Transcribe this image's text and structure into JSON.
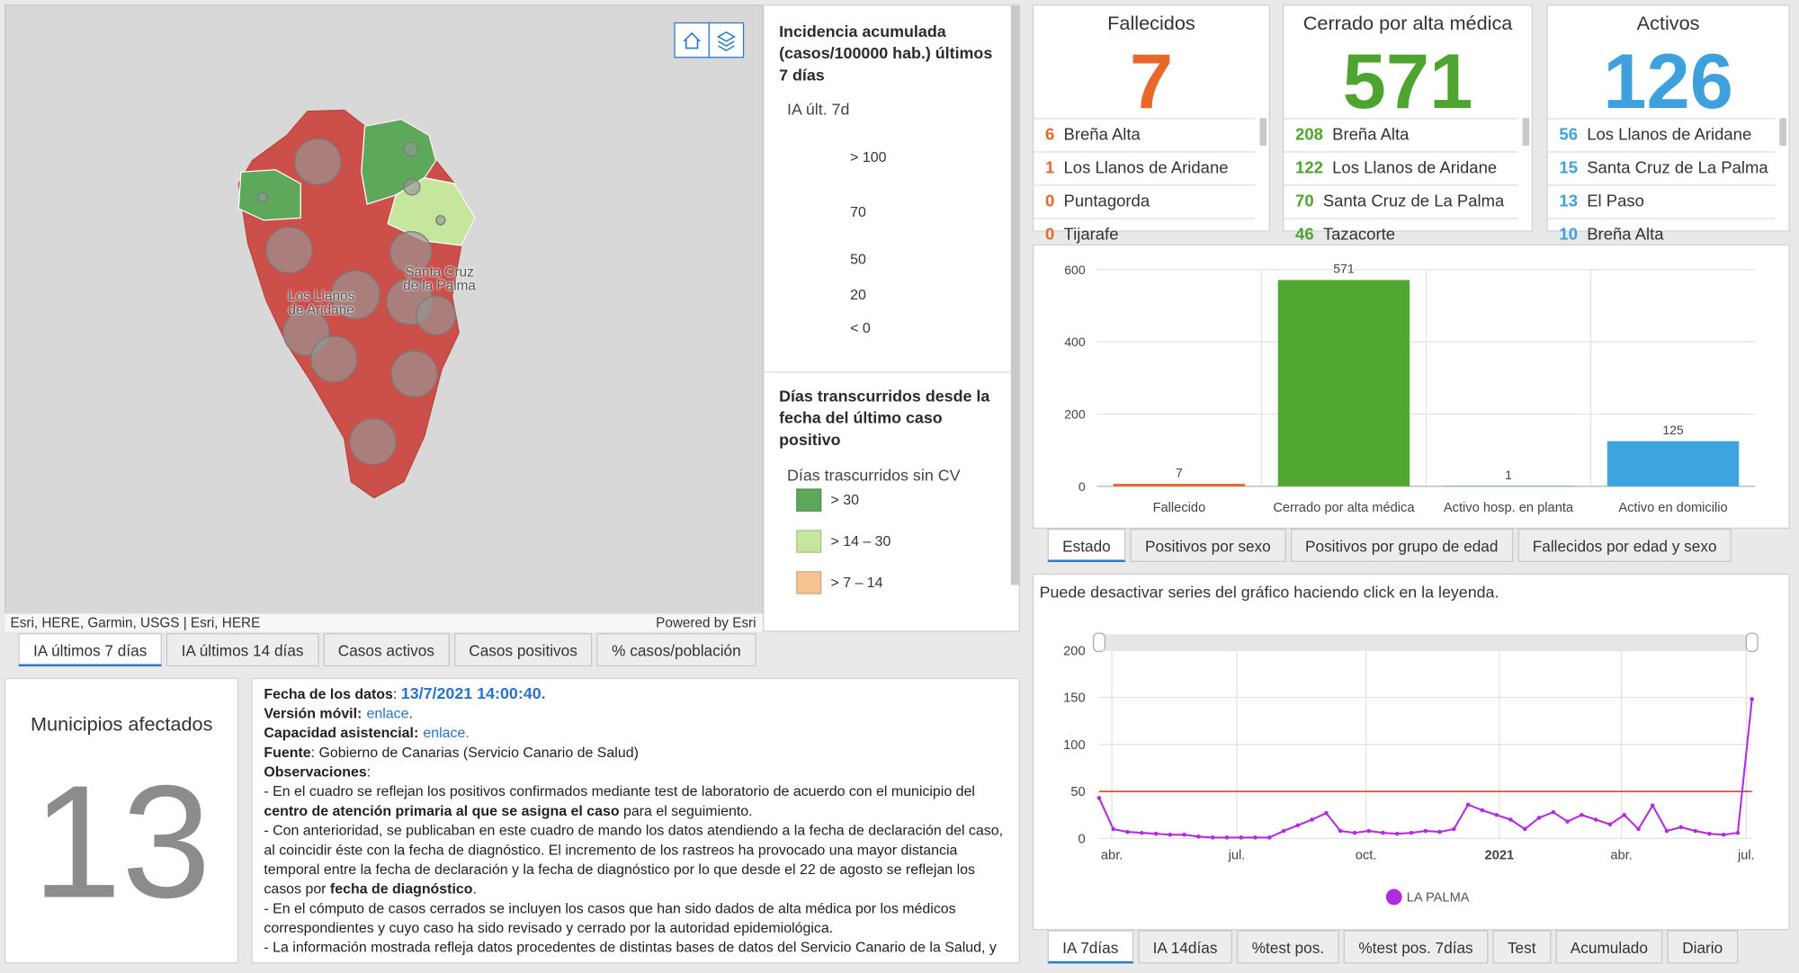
{
  "map": {
    "attribution": "Esri, HERE, Garmin, USGS | Esri, HERE",
    "powered": "Powered by Esri",
    "labels": [
      "Los Llanos de Aridane",
      "Santa Cruz de la Palma"
    ]
  },
  "legend": {
    "ia_title": "Incidencia acumulada (casos/100000 hab.) últimos 7 días",
    "ia_subtitle": "IA últ. 7d",
    "ia_items": [
      "> 100",
      "70",
      "50",
      "20",
      "< 0"
    ],
    "days_title": "Días transcurridos desde la fecha del último caso positivo",
    "days_subtitle": "Días trascurridos sin CV",
    "days_items": [
      {
        "label": "> 30",
        "color": "#5ea85b"
      },
      {
        "label": "> 14 – 30",
        "color": "#c6e59d"
      },
      {
        "label": "> 7 – 14",
        "color": "#f7c393"
      }
    ]
  },
  "map_tabs": {
    "items": [
      "IA últimos 7 días",
      "IA últimos 14 días",
      "Casos activos",
      "Casos positivos",
      "% casos/población"
    ],
    "active": 0
  },
  "municipios": {
    "title": "Municipios afectados",
    "value": 13
  },
  "info": {
    "lines": [
      [
        {
          "text": "Fecha de los datos",
          "style": "bold"
        },
        {
          "text": ": ",
          "style": "plain"
        },
        {
          "text": "13/7/2021 14:00:40.",
          "style": "date"
        }
      ],
      [
        {
          "text": "Versión móvil:",
          "style": "bold"
        },
        {
          "text": "enlace",
          "style": "link"
        },
        {
          "text": ".",
          "style": "plain"
        }
      ],
      [
        {
          "text": "Capacidad asistencial:",
          "style": "bold"
        },
        {
          "text": "enlace.",
          "style": "link"
        }
      ],
      [
        {
          "text": "Fuente",
          "style": "bold"
        },
        {
          "text": ": Gobierno de Canarias (Servicio Canario de Salud)",
          "style": "plain"
        }
      ],
      [
        {
          "text": "Observaciones",
          "style": "bold"
        },
        {
          "text": ":",
          "style": "plain"
        }
      ],
      [
        {
          "text": "- En el cuadro se reflejan los positivos confirmados mediante test de laboratorio de acuerdo con el municipio del ",
          "style": "plain"
        },
        {
          "text": "centro de atención primaria al que se asigna el caso",
          "style": "bold"
        },
        {
          "text": " para el seguimiento.",
          "style": "plain"
        }
      ],
      [
        {
          "text": "- Con anterioridad, se publicaban en este cuadro de mando los datos atendiendo a la fecha de declaración del caso, al coincidir éste con la fecha de diagnóstico. El incremento de los rastreos ha provocado una mayor distancia temporal entre la fecha de declaración y la fecha de diagnóstico por lo que desde el 22 de agosto se reflejan los casos por ",
          "style": "plain"
        },
        {
          "text": "fecha de diagnóstico",
          "style": "bold"
        },
        {
          "text": ".",
          "style": "plain"
        }
      ],
      [
        {
          "text": "- En el cómputo de casos cerrados se incluyen los casos que han sido dados de alta médica por los médicos correspondientes y cuyo caso ha sido revisado y cerrado por la autoridad epidemiológica.",
          "style": "plain"
        }
      ],
      [
        {
          "text": "- La información mostrada refleja datos procedentes de distintas bases de datos del Servicio Canario de la Salud, y",
          "style": "plain"
        }
      ]
    ]
  },
  "indicators": [
    {
      "title": "Fallecidos",
      "value": 7,
      "color": "#e8672b",
      "rows": [
        {
          "n": 6,
          "name": "Breña Alta"
        },
        {
          "n": 1,
          "name": "Los Llanos de Aridane"
        },
        {
          "n": 0,
          "name": "Puntagorda"
        },
        {
          "n": 0,
          "name": "Tijarafe"
        }
      ]
    },
    {
      "title": "Cerrado por alta médica",
      "value": 571,
      "color": "#4fa32f",
      "rows": [
        {
          "n": 208,
          "name": "Breña Alta"
        },
        {
          "n": 122,
          "name": "Los Llanos de Aridane"
        },
        {
          "n": 70,
          "name": "Santa Cruz de La Palma"
        },
        {
          "n": 46,
          "name": "Tazacorte"
        }
      ]
    },
    {
      "title": "Activos",
      "value": 126,
      "color": "#3ea1dd",
      "rows": [
        {
          "n": 56,
          "name": "Los Llanos de Aridane"
        },
        {
          "n": 15,
          "name": "Santa Cruz de La Palma"
        },
        {
          "n": 13,
          "name": "El Paso"
        },
        {
          "n": 10,
          "name": "Breña Alta"
        }
      ]
    }
  ],
  "chart_data": [
    {
      "type": "bar",
      "categories": [
        "Fallecido",
        "Cerrado por alta médica",
        "Activo hosp. en planta",
        "Activo en domicilio"
      ],
      "values": [
        7,
        571,
        1,
        125
      ],
      "colors": [
        "#e8672b",
        "#52a632",
        "#3a8fd6",
        "#3ea4e0"
      ],
      "ylim": [
        0,
        600
      ],
      "yticks": [
        0,
        200,
        400,
        600
      ],
      "grid": true
    },
    {
      "type": "line",
      "note": "Puede desactivar series del gráfico haciendo click en la leyenda.",
      "series": [
        {
          "name": "LA PALMA",
          "color": "#b32be0",
          "values": [
            43,
            10,
            7,
            6,
            5,
            4,
            4,
            2,
            1,
            1,
            1,
            1,
            1,
            8,
            14,
            20,
            27,
            8,
            6,
            8,
            6,
            5,
            6,
            8,
            7,
            10,
            36,
            30,
            25,
            20,
            10,
            22,
            28,
            18,
            25,
            20,
            15,
            25,
            10,
            35,
            8,
            12,
            8,
            5,
            4,
            6,
            148
          ]
        }
      ],
      "xlim": [
        0,
        46
      ],
      "xticks": [
        {
          "value": 0.9,
          "label": "abr."
        },
        {
          "value": 9.7,
          "label": "jul."
        },
        {
          "value": 18.8,
          "label": "oct."
        },
        {
          "value": 28.2,
          "label": "2021"
        },
        {
          "value": 36.8,
          "label": "abr."
        },
        {
          "value": 45.6,
          "label": "jul."
        }
      ],
      "ylim": [
        0,
        200
      ],
      "yticks": [
        0,
        50,
        100,
        150,
        200
      ],
      "grid": true,
      "threshold": 50,
      "threshold_color": "#e0301e"
    }
  ],
  "bar_tabs": {
    "items": [
      "Estado",
      "Positivos por sexo",
      "Positivos por grupo de edad",
      "Fallecidos por edad y sexo"
    ],
    "active": 0
  },
  "line_tabs": {
    "items": [
      "IA 7días",
      "IA 14días",
      "%test pos.",
      "%test pos. 7días",
      "Test",
      "Acumulado",
      "Diario"
    ],
    "active": 0
  }
}
